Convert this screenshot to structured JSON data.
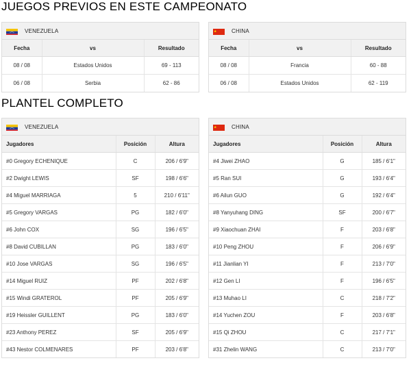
{
  "previous_games": {
    "title": "JUEGOS PREVIOS EN ESTE CAMPEONATO",
    "headers": {
      "date": "Fecha",
      "vs": "vs",
      "result": "Resultado"
    },
    "teams": [
      {
        "name": "VENEZUELA",
        "flag_icon": "venezuela-flag-icon",
        "games": [
          {
            "date": "08 / 08",
            "vs": "Estados Unidos",
            "result": "69 - 113"
          },
          {
            "date": "06 / 08",
            "vs": "Serbia",
            "result": "62 - 86"
          }
        ]
      },
      {
        "name": "CHINA",
        "flag_icon": "china-flag-icon",
        "games": [
          {
            "date": "08 / 08",
            "vs": "Francia",
            "result": "60 - 88"
          },
          {
            "date": "06 / 08",
            "vs": "Estados Unidos",
            "result": "62 - 119"
          }
        ]
      }
    ]
  },
  "roster": {
    "title": "PLANTEL COMPLETO",
    "headers": {
      "player": "Jugadores",
      "position": "Posición",
      "height": "Altura"
    },
    "teams": [
      {
        "name": "VENEZUELA",
        "flag_icon": "venezuela-flag-icon",
        "players": [
          {
            "name": "#0 Gregory ECHENIQUE",
            "position": "C",
            "height": "206 / 6'9\""
          },
          {
            "name": "#2 Dwight LEWIS",
            "position": "SF",
            "height": "198 / 6'6\""
          },
          {
            "name": "#4 Miguel MARRIAGA",
            "position": "5",
            "height": "210 / 6'11\""
          },
          {
            "name": "#5 Gregory VARGAS",
            "position": "PG",
            "height": "182 / 6'0\""
          },
          {
            "name": "#6 John COX",
            "position": "SG",
            "height": "196 / 6'5\""
          },
          {
            "name": "#8 David CUBILLAN",
            "position": "PG",
            "height": "183 / 6'0\""
          },
          {
            "name": "#10 Jose VARGAS",
            "position": "SG",
            "height": "196 / 6'5\""
          },
          {
            "name": "#14 Miguel RUIZ",
            "position": "PF",
            "height": "202 / 6'8\""
          },
          {
            "name": "#15 Windi GRATEROL",
            "position": "PF",
            "height": "205 / 6'9\""
          },
          {
            "name": "#19 Heissler GUILLENT",
            "position": "PG",
            "height": "183 / 6'0\""
          },
          {
            "name": "#23 Anthony PEREZ",
            "position": "SF",
            "height": "205 / 6'9\""
          },
          {
            "name": "#43 Nestor COLMENARES",
            "position": "PF",
            "height": "203 / 6'8\""
          }
        ]
      },
      {
        "name": "CHINA",
        "flag_icon": "china-flag-icon",
        "players": [
          {
            "name": "#4 Jiwei ZHAO",
            "position": "G",
            "height": "185 / 6'1\""
          },
          {
            "name": "#5 Ran SUI",
            "position": "G",
            "height": "193 / 6'4\""
          },
          {
            "name": "#6 Ailun GUO",
            "position": "G",
            "height": "192 / 6'4\""
          },
          {
            "name": "#8 Yanyuhang DING",
            "position": "SF",
            "height": "200 / 6'7\""
          },
          {
            "name": "#9 Xiaochuan ZHAI",
            "position": "F",
            "height": "203 / 6'8\""
          },
          {
            "name": "#10 Peng ZHOU",
            "position": "F",
            "height": "206 / 6'9\""
          },
          {
            "name": "#11 Jianlian YI",
            "position": "F",
            "height": "213 / 7'0\""
          },
          {
            "name": "#12 Gen LI",
            "position": "F",
            "height": "196 / 6'5\""
          },
          {
            "name": "#13 Muhao LI",
            "position": "C",
            "height": "218 / 7'2\""
          },
          {
            "name": "#14 Yuchen ZOU",
            "position": "F",
            "height": "203 / 6'8\""
          },
          {
            "name": "#15 Qi ZHOU",
            "position": "C",
            "height": "217 / 7'1\""
          },
          {
            "name": "#31 Zhelin WANG",
            "position": "C",
            "height": "213 / 7'0\""
          }
        ]
      }
    ]
  }
}
